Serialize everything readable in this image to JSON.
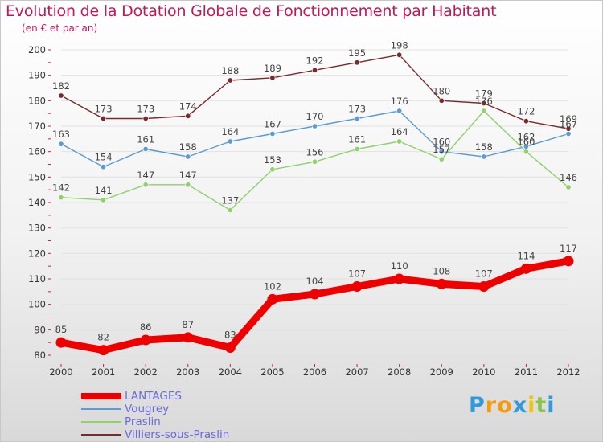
{
  "chart_data": {
    "type": "line",
    "title": "Evolution de la Dotation Globale de Fonctionnement par Habitant",
    "subtitle": "(en € et par an)",
    "xlabel": "",
    "ylabel": "",
    "ylim": [
      80,
      200
    ],
    "yticks": [
      80,
      90,
      100,
      110,
      120,
      130,
      140,
      150,
      160,
      170,
      180,
      190,
      200
    ],
    "categories": [
      "2000",
      "2001",
      "2002",
      "2003",
      "2004",
      "2005",
      "2006",
      "2007",
      "2008",
      "2009",
      "2010",
      "2011",
      "2012"
    ],
    "legend_position": "bottom-left",
    "series": [
      {
        "name": "LANTAGES",
        "color": "#ee0000",
        "values": [
          85,
          82,
          86,
          87,
          83,
          102,
          104,
          107,
          110,
          108,
          107,
          114,
          117
        ]
      },
      {
        "name": "Vougrey",
        "color": "#5b9bd5",
        "values": [
          163,
          154,
          161,
          158,
          164,
          167,
          170,
          173,
          176,
          160,
          158,
          162,
          167
        ]
      },
      {
        "name": "Praslin",
        "color": "#8fd16b",
        "values": [
          142,
          141,
          147,
          147,
          137,
          153,
          156,
          161,
          164,
          157,
          176,
          160,
          146
        ]
      },
      {
        "name": "Villiers-sous-Praslin",
        "color": "#7a2a2a",
        "values": [
          182,
          173,
          173,
          174,
          188,
          189,
          192,
          195,
          198,
          180,
          179,
          172,
          169
        ]
      }
    ]
  },
  "logo": {
    "letters": [
      "P",
      "r",
      "o",
      "x",
      "i",
      "t",
      "i"
    ],
    "colors": [
      "#3399dd",
      "#f39c12",
      "#f39c12",
      "#3399dd",
      "#f1c40f",
      "#8bc34a",
      "#3399dd"
    ]
  }
}
